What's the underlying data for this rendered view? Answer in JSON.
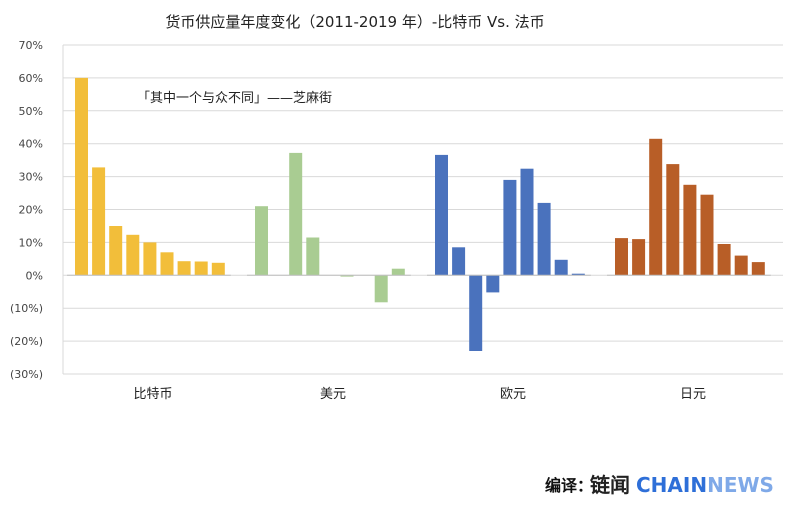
{
  "chart_data": {
    "type": "bar",
    "title": "货币供应量年度变化（2011-2019 年）-比特币 Vs. 法币",
    "annotation": "「其中一个与众不同」——芝麻街",
    "xlabel": "",
    "ylabel": "",
    "ylim": [
      -30,
      70
    ],
    "y_ticks": [
      "70%",
      "60%",
      "50%",
      "40%",
      "30%",
      "20%",
      "10%",
      "0%",
      "(10%)",
      "(20%)",
      "(30%)"
    ],
    "grid": true,
    "legend": "none",
    "groups": [
      {
        "name": "比特币",
        "color": "#F2BE3A",
        "values": [
          60.0,
          32.8,
          15.0,
          12.3,
          10.0,
          7.0,
          4.3,
          4.2,
          3.8
        ]
      },
      {
        "name": "美元",
        "color": "#A9CC92",
        "values": [
          21.0,
          0,
          37.2,
          11.5,
          0,
          -0.4,
          0,
          -8.2,
          2.0
        ]
      },
      {
        "name": "欧元",
        "color": "#4A72BD",
        "values": [
          36.6,
          8.5,
          -23.0,
          -5.2,
          29.0,
          32.4,
          22.0,
          4.7,
          0.5
        ]
      },
      {
        "name": "日元",
        "color": "#B85E27",
        "values": [
          11.3,
          11.0,
          41.5,
          33.8,
          27.5,
          24.5,
          9.5,
          6.0,
          4.0
        ]
      }
    ]
  },
  "credit": {
    "label": "编译：",
    "brand_cn": "链闻",
    "brand_en1": "CHAIN",
    "brand_en2": "NEWS",
    "brand_color": "#2E6FD8"
  }
}
